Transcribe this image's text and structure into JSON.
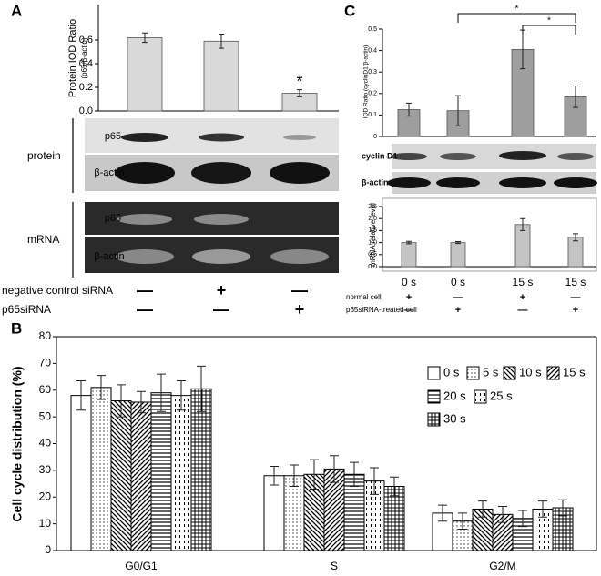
{
  "chart_data": [
    {
      "type": "bar",
      "panel": "A",
      "ylabel": "Protein IOD Ratio",
      "ysublabel": "(p65/β-actin)",
      "values": [
        0.62,
        0.59,
        0.15
      ],
      "errors": [
        0.04,
        0.06,
        0.03
      ],
      "color": "#d9d9d9",
      "ylim": [
        0,
        0.9
      ],
      "yticks": [
        {
          "value": 0,
          "label": "0.0"
        },
        0.2,
        0.4,
        0.6
      ],
      "annotations": [
        "*"
      ],
      "blot_groups": [
        "protein",
        "mRNA"
      ],
      "blot_labels": [
        "p65",
        "β-actin",
        "p65",
        "β-actin"
      ],
      "rows": [
        {
          "name": "negative control siRNA",
          "marks": [
            "—",
            "+",
            "—"
          ]
        },
        {
          "name": "p65siRNA",
          "marks": [
            "—",
            "—",
            "+"
          ]
        }
      ]
    },
    {
      "type": "bar",
      "panel": "C",
      "ylabel": "IOD Ratio (cyclinD1/β-actin)",
      "values": [
        0.125,
        0.12,
        0.405,
        0.185
      ],
      "errors": [
        0.03,
        0.07,
        0.09,
        0.05
      ],
      "color": "#9e9e9e",
      "ylim": [
        0,
        0.5
      ],
      "yticks": [
        0,
        0.1,
        0.2,
        0.3,
        0.4,
        0.5
      ],
      "annotations": [
        "*",
        "*"
      ],
      "blot_labels": [
        "cyclin D1",
        "β-actin"
      ]
    },
    {
      "type": "bar",
      "ylabel": "mRNA relative level",
      "categories": [
        "0 s",
        "0 s",
        "15 s",
        "15 s"
      ],
      "values": [
        1.0,
        1.0,
        1.75,
        1.22
      ],
      "errors": [
        0.05,
        0.04,
        0.25,
        0.15
      ],
      "color": "#c4c4c4",
      "ylim": [
        0,
        2.5
      ],
      "yticks": [
        {
          "value": 0,
          "label": "0.0"
        },
        0.5,
        {
          "value": 1,
          "label": "1.0"
        },
        1.5,
        {
          "value": 2,
          "label": "2.0"
        },
        2.5
      ],
      "rows": [
        {
          "name": "normal cell",
          "marks": [
            "+",
            "—",
            "+",
            "—"
          ]
        },
        {
          "name": "p65siRNA-treated cell",
          "marks": [
            "—",
            "+",
            "—",
            "+"
          ]
        }
      ]
    },
    {
      "type": "grouped-bar",
      "panel": "B",
      "ylabel": "Cell cycle distribution (%)",
      "categories": [
        "G0/G1",
        "S",
        "G2/M"
      ],
      "ylim": [
        0,
        80
      ],
      "yticks": [
        0,
        10,
        20,
        30,
        40,
        50,
        60,
        70,
        80
      ],
      "series": [
        {
          "name": "0 s",
          "pattern": "none",
          "values": [
            58,
            28,
            14
          ],
          "errors": [
            5.5,
            3.5,
            3
          ]
        },
        {
          "name": "5 s",
          "pattern": "dots",
          "values": [
            61,
            28,
            11
          ],
          "errors": [
            4.5,
            4,
            3
          ]
        },
        {
          "name": "10 s",
          "pattern": "back-diagonal",
          "values": [
            56,
            28.5,
            15.5
          ],
          "errors": [
            6,
            5.5,
            3
          ]
        },
        {
          "name": "15 s",
          "pattern": "diagonal",
          "values": [
            55.5,
            30.5,
            13.5
          ],
          "errors": [
            4,
            5,
            3
          ]
        },
        {
          "name": "20 s",
          "pattern": "horizontal",
          "values": [
            59,
            28.5,
            12
          ],
          "errors": [
            7,
            4.5,
            3
          ]
        },
        {
          "name": "25 s",
          "pattern": "vertical-dash",
          "values": [
            58,
            26,
            15.5
          ],
          "errors": [
            5.5,
            5,
            3
          ]
        },
        {
          "name": "30 s",
          "pattern": "grid",
          "values": [
            60.5,
            24,
            16
          ],
          "errors": [
            8.5,
            3.5,
            3
          ]
        }
      ]
    }
  ]
}
